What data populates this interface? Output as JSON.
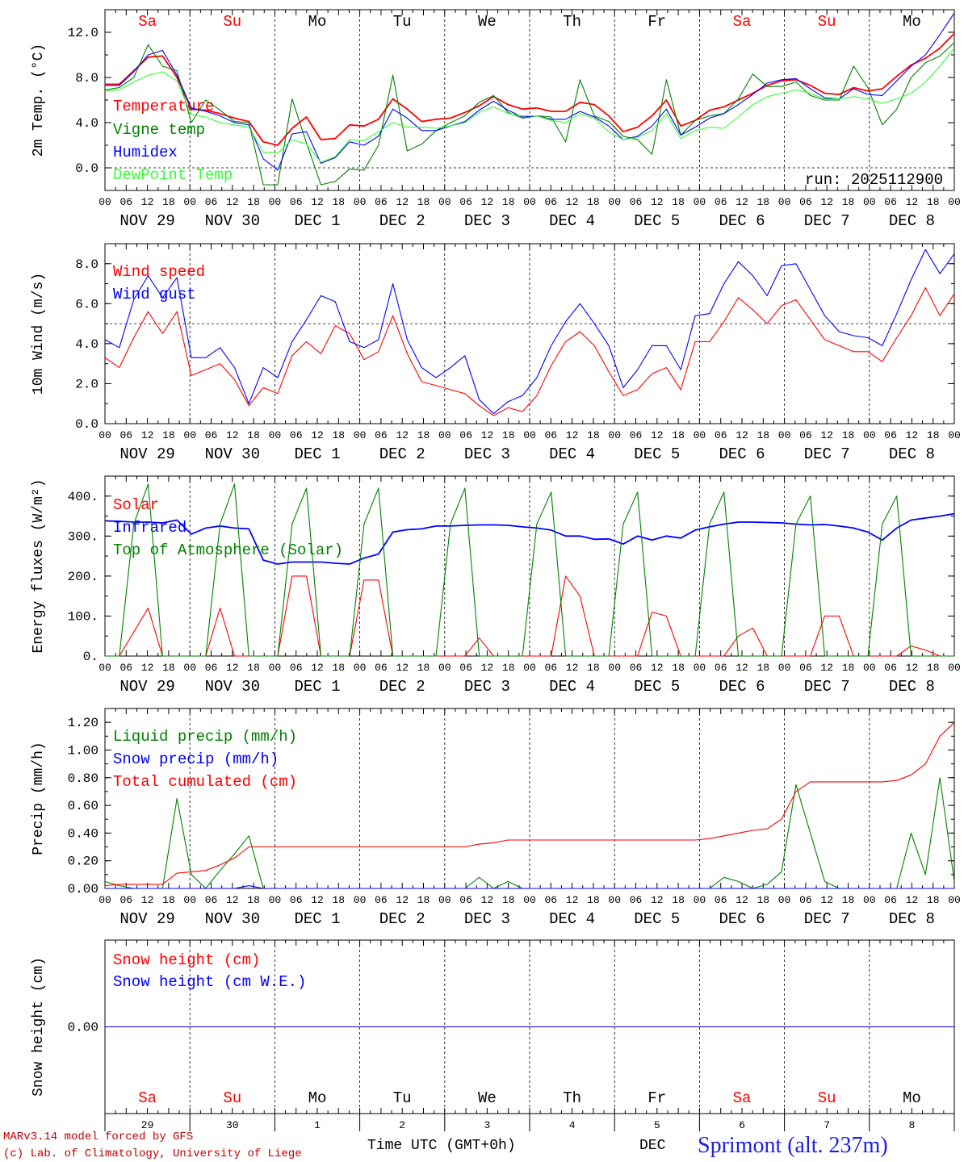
{
  "colors": {
    "red": "#ff0000",
    "green": "#008000",
    "blue": "#0000ff",
    "lightgreen": "#33ff33",
    "axis": "#000000",
    "guide": "#000000"
  },
  "days": [
    {
      "abbr": "Sa",
      "weekend": true,
      "date": "NOV 29",
      "num": "29"
    },
    {
      "abbr": "Su",
      "weekend": true,
      "date": "NOV 30",
      "num": "30"
    },
    {
      "abbr": "Mo",
      "weekend": false,
      "date": "DEC  1",
      "num": "1"
    },
    {
      "abbr": "Tu",
      "weekend": false,
      "date": "DEC  2",
      "num": "2"
    },
    {
      "abbr": "We",
      "weekend": false,
      "date": "DEC  3",
      "num": "3"
    },
    {
      "abbr": "Th",
      "weekend": false,
      "date": "DEC  4",
      "num": "4"
    },
    {
      "abbr": "Fr",
      "weekend": false,
      "date": "DEC  5",
      "num": "5"
    },
    {
      "abbr": "Sa",
      "weekend": true,
      "date": "DEC  6",
      "num": "6"
    },
    {
      "abbr": "Su",
      "weekend": true,
      "date": "DEC  7",
      "num": "7"
    },
    {
      "abbr": "Mo",
      "weekend": false,
      "date": "DEC  8",
      "num": "8"
    }
  ],
  "hour_labels": [
    "00",
    "06",
    "12",
    "18"
  ],
  "run_label": "run: 2025112900",
  "footer": {
    "model": "MARv3.14 model forced by GFS",
    "lab": "(c) Lab. of Climatology, University of Liege",
    "time_axis": "Time UTC (GMT+0h)",
    "month": "DEC",
    "station": "Sprimont (alt. 237m)"
  },
  "chart_data": [
    {
      "type": "line",
      "title": "",
      "ylabel": "2m Temp. (°C)",
      "ylim": [
        -2,
        14
      ],
      "yticks": [
        0.0,
        4.0,
        8.0,
        12.0
      ],
      "ytick_labels": [
        "0.0",
        "4.0",
        "8.0",
        "12.0"
      ],
      "hline": 0,
      "x_hours_step": 6,
      "series": [
        {
          "name": "Temperature",
          "color": "#ff0000",
          "values": [
            7.4,
            7.4,
            8.6,
            9.8,
            9.9,
            8.0,
            5.2,
            5.1,
            4.8,
            4.4,
            4.1,
            2.3,
            2.0,
            3.5,
            4.5,
            2.5,
            2.6,
            3.8,
            3.7,
            4.3,
            6.1,
            5.2,
            4.1,
            4.3,
            4.4,
            4.9,
            5.5,
            6.3,
            5.6,
            5.2,
            5.3,
            5.0,
            5.0,
            5.8,
            5.6,
            4.6,
            3.2,
            3.6,
            4.6,
            6.0,
            3.7,
            4.2,
            5.1,
            5.4,
            6.0,
            6.6,
            7.3,
            7.7,
            7.8,
            7.3,
            6.6,
            6.5,
            7.1,
            6.8,
            7.0,
            8.1,
            9.1,
            9.7,
            10.6,
            11.9
          ]
        },
        {
          "name": "Vigne temp",
          "color": "#008000",
          "values": [
            6.9,
            7.1,
            8.0,
            10.9,
            9.0,
            8.6,
            4.0,
            6.0,
            5.1,
            4.1,
            4.0,
            -1.5,
            -1.5,
            6.1,
            2.2,
            -1.5,
            -1.2,
            -0.1,
            -0.2,
            2.0,
            8.2,
            1.5,
            2.1,
            3.3,
            4.0,
            4.6,
            5.8,
            6.4,
            4.9,
            4.4,
            4.6,
            4.5,
            2.3,
            7.8,
            4.6,
            4.1,
            2.8,
            2.5,
            1.2,
            7.8,
            2.9,
            4.2,
            4.6,
            4.8,
            6.1,
            8.3,
            7.2,
            7.2,
            7.6,
            6.4,
            6.0,
            6.0,
            9.0,
            7.1,
            3.8,
            5.2,
            8.0,
            9.3,
            9.9,
            11.1
          ]
        },
        {
          "name": "Humidex",
          "color": "#0000ff",
          "values": [
            7.3,
            7.3,
            8.5,
            10.0,
            10.4,
            8.2,
            5.3,
            5.0,
            4.6,
            4.0,
            3.8,
            0.8,
            -0.2,
            3.0,
            3.2,
            0.4,
            0.9,
            2.3,
            2.0,
            2.8,
            5.2,
            4.4,
            3.3,
            3.3,
            3.7,
            4.1,
            5.1,
            5.9,
            5.1,
            4.5,
            4.6,
            4.3,
            4.3,
            5.0,
            4.5,
            3.7,
            2.5,
            2.8,
            3.7,
            5.2,
            2.9,
            3.6,
            4.4,
            4.8,
            5.6,
            6.5,
            7.5,
            7.8,
            7.9,
            7.0,
            6.2,
            6.1,
            7.0,
            6.5,
            6.4,
            7.7,
            9.0,
            10.0,
            11.8,
            13.7
          ]
        },
        {
          "name": "DewPoint Temp",
          "color": "#33ff33",
          "values": [
            6.8,
            6.9,
            7.6,
            8.2,
            8.5,
            7.7,
            4.7,
            4.5,
            4.0,
            3.8,
            3.6,
            1.4,
            1.3,
            2.5,
            2.1,
            0.5,
            1.0,
            2.5,
            2.4,
            3.2,
            4.0,
            3.6,
            3.6,
            3.5,
            3.7,
            4.0,
            4.9,
            5.4,
            4.8,
            4.6,
            4.6,
            4.2,
            4.0,
            4.8,
            4.4,
            3.2,
            2.5,
            2.7,
            3.3,
            4.8,
            2.6,
            3.3,
            3.6,
            3.5,
            4.5,
            5.6,
            6.3,
            6.6,
            6.9,
            6.6,
            6.1,
            6.1,
            6.3,
            6.1,
            5.7,
            6.1,
            6.6,
            7.6,
            9.0,
            10.6
          ]
        }
      ]
    },
    {
      "type": "line",
      "ylabel": "10m Wind (m/s)",
      "ylim": [
        0,
        9
      ],
      "yticks": [
        0.0,
        2.0,
        4.0,
        6.0,
        8.0
      ],
      "ytick_labels": [
        "0.0",
        "2.0",
        "4.0",
        "6.0",
        "8.0"
      ],
      "hline": 5,
      "x_hours_step": 6,
      "series": [
        {
          "name": "Wind speed",
          "color": "#ff0000",
          "values": [
            3.3,
            2.8,
            4.3,
            5.6,
            4.5,
            5.6,
            2.4,
            2.7,
            3.0,
            2.2,
            0.9,
            1.8,
            1.5,
            3.4,
            4.1,
            3.5,
            4.9,
            4.5,
            3.2,
            3.6,
            5.4,
            3.5,
            2.1,
            1.9,
            1.7,
            1.5,
            0.9,
            0.4,
            0.8,
            0.6,
            1.4,
            2.9,
            4.1,
            4.6,
            3.9,
            2.6,
            1.4,
            1.7,
            2.5,
            2.8,
            1.7,
            4.1,
            4.1,
            5.1,
            6.3,
            5.7,
            5.0,
            5.9,
            6.2,
            5.2,
            4.2,
            3.9,
            3.6,
            3.6,
            3.1,
            4.3,
            5.4,
            6.8,
            5.4,
            6.5
          ]
        },
        {
          "name": "Wind gust",
          "color": "#0000ff",
          "values": [
            4.2,
            3.8,
            6.2,
            7.4,
            6.3,
            7.3,
            3.3,
            3.3,
            3.8,
            2.8,
            1.0,
            2.8,
            2.3,
            4.1,
            5.2,
            6.4,
            6.1,
            4.1,
            3.8,
            4.2,
            7.0,
            4.2,
            2.8,
            2.3,
            2.8,
            3.4,
            1.2,
            0.5,
            1.1,
            1.4,
            2.3,
            3.9,
            5.1,
            6.0,
            5.0,
            3.9,
            1.8,
            2.7,
            3.9,
            3.9,
            2.7,
            5.4,
            5.5,
            7.0,
            8.1,
            7.4,
            6.4,
            7.9,
            8.0,
            6.7,
            5.4,
            4.6,
            4.4,
            4.3,
            3.9,
            5.5,
            7.2,
            8.7,
            7.5,
            8.5
          ]
        }
      ]
    },
    {
      "type": "line",
      "ylabel": "Energy fluxes (W/m²)",
      "ylim": [
        0,
        450
      ],
      "yticks": [
        0,
        100,
        200,
        300,
        400
      ],
      "ytick_labels": [
        "0.",
        "100.",
        "200.",
        "300.",
        "400."
      ],
      "x_hours_step": 6,
      "series": [
        {
          "name": "Solar",
          "color": "#ff0000",
          "values": [
            0,
            0,
            60,
            120,
            0,
            0,
            0,
            0,
            120,
            0,
            0,
            0,
            0,
            200,
            200,
            0,
            0,
            0,
            190,
            190,
            0,
            0,
            0,
            0,
            0,
            0,
            45,
            0,
            0,
            0,
            0,
            0,
            200,
            150,
            0,
            0,
            0,
            0,
            110,
            100,
            0,
            0,
            0,
            0,
            50,
            70,
            0,
            0,
            0,
            0,
            100,
            100,
            0,
            0,
            0,
            0,
            25,
            15,
            0,
            0
          ]
        },
        {
          "name": "Infrared",
          "color": "#0000ff",
          "values": [
            338,
            337,
            335,
            335,
            333,
            340,
            305,
            320,
            325,
            320,
            318,
            240,
            230,
            235,
            235,
            235,
            232,
            230,
            245,
            255,
            310,
            316,
            318,
            325,
            325,
            327,
            328,
            328,
            327,
            323,
            320,
            315,
            300,
            300,
            292,
            293,
            280,
            300,
            290,
            300,
            295,
            315,
            323,
            330,
            335,
            335,
            334,
            333,
            330,
            328,
            329,
            325,
            320,
            310,
            290,
            320,
            340,
            345,
            350,
            356
          ]
        },
        {
          "name": "Top of Atmosphere (Solar)",
          "color": "#008000",
          "values": [
            0,
            0,
            330,
            430,
            0,
            0,
            0,
            0,
            330,
            430,
            0,
            0,
            0,
            330,
            420,
            0,
            0,
            0,
            330,
            420,
            0,
            0,
            0,
            0,
            330,
            420,
            0,
            0,
            0,
            0,
            330,
            410,
            0,
            0,
            0,
            0,
            330,
            410,
            0,
            0,
            0,
            0,
            330,
            410,
            0,
            0,
            0,
            0,
            330,
            400,
            0,
            0,
            0,
            0,
            330,
            400,
            0,
            0,
            0,
            0
          ]
        }
      ]
    },
    {
      "type": "line",
      "ylabel": "Precip (mm/h)",
      "ylim": [
        0,
        1.3
      ],
      "yticks": [
        0.0,
        0.2,
        0.4,
        0.6,
        0.8,
        1.0,
        1.2
      ],
      "ytick_labels": [
        "0.00",
        "0.20",
        "0.40",
        "0.60",
        "0.80",
        "1.00",
        "1.20"
      ],
      "x_hours_step": 6,
      "series": [
        {
          "name": "Liquid precip (mm/h)",
          "color": "#008000",
          "values": [
            0.05,
            0.02,
            0,
            0,
            0,
            0.65,
            0.1,
            0,
            0.13,
            0.25,
            0.38,
            0,
            0,
            0,
            0,
            0,
            0,
            0,
            0,
            0,
            0,
            0,
            0,
            0,
            0,
            0,
            0.08,
            0,
            0.05,
            0,
            0,
            0,
            0,
            0,
            0,
            0,
            0,
            0,
            0,
            0,
            0,
            0,
            0,
            0.08,
            0.05,
            0,
            0.03,
            0.12,
            0.75,
            0.4,
            0.05,
            0,
            0,
            0,
            0,
            0,
            0.4,
            0.1,
            0.8,
            0.05
          ]
        },
        {
          "name": "Snow precip (mm/h)",
          "color": "#0000ff",
          "values": [
            0,
            0,
            0,
            0,
            0,
            0,
            0,
            0,
            0,
            0,
            0.02,
            0,
            0,
            0,
            0,
            0,
            0,
            0,
            0,
            0,
            0,
            0,
            0,
            0,
            0,
            0,
            0,
            0,
            0,
            0,
            0,
            0,
            0,
            0,
            0,
            0,
            0,
            0,
            0,
            0,
            0,
            0,
            0,
            0,
            0,
            0,
            0,
            0,
            0,
            0,
            0,
            0,
            0,
            0,
            0,
            0,
            0,
            0,
            0,
            0
          ]
        },
        {
          "name": "Total cumulated (cm)",
          "color": "#ff0000",
          "values": [
            0.02,
            0.03,
            0.03,
            0.03,
            0.03,
            0.11,
            0.12,
            0.13,
            0.17,
            0.22,
            0.3,
            0.3,
            0.3,
            0.3,
            0.3,
            0.3,
            0.3,
            0.3,
            0.3,
            0.3,
            0.3,
            0.3,
            0.3,
            0.3,
            0.3,
            0.3,
            0.32,
            0.33,
            0.35,
            0.35,
            0.35,
            0.35,
            0.35,
            0.35,
            0.35,
            0.35,
            0.35,
            0.35,
            0.35,
            0.35,
            0.35,
            0.35,
            0.36,
            0.38,
            0.4,
            0.42,
            0.43,
            0.5,
            0.7,
            0.77,
            0.77,
            0.77,
            0.77,
            0.77,
            0.77,
            0.78,
            0.82,
            0.9,
            1.1,
            1.2
          ]
        }
      ]
    },
    {
      "type": "line",
      "ylabel": "Snow height (cm)",
      "ylim": [
        -1,
        1
      ],
      "yticks": [
        0.0
      ],
      "ytick_labels": [
        "0.00"
      ],
      "x_hours_step": 6,
      "series": [
        {
          "name": "Snow height (cm)",
          "color": "#ff0000",
          "values": [
            0,
            0,
            0,
            0,
            0,
            0,
            0,
            0,
            0,
            0,
            0,
            0,
            0,
            0,
            0,
            0,
            0,
            0,
            0,
            0,
            0,
            0,
            0,
            0,
            0,
            0,
            0,
            0,
            0,
            0,
            0,
            0,
            0,
            0,
            0,
            0,
            0,
            0,
            0,
            0,
            0,
            0,
            0,
            0,
            0,
            0,
            0,
            0,
            0,
            0,
            0,
            0,
            0,
            0,
            0,
            0,
            0,
            0,
            0,
            0
          ]
        },
        {
          "name": "Snow height (cm W.E.)",
          "color": "#0000ff",
          "values": [
            0,
            0,
            0,
            0,
            0,
            0,
            0,
            0,
            0,
            0,
            0,
            0,
            0,
            0,
            0,
            0,
            0,
            0,
            0,
            0,
            0,
            0,
            0,
            0,
            0,
            0,
            0,
            0,
            0,
            0,
            0,
            0,
            0,
            0,
            0,
            0,
            0,
            0,
            0,
            0,
            0,
            0,
            0,
            0,
            0,
            0,
            0,
            0,
            0,
            0,
            0,
            0,
            0,
            0,
            0,
            0,
            0,
            0,
            0,
            0
          ]
        }
      ]
    }
  ]
}
